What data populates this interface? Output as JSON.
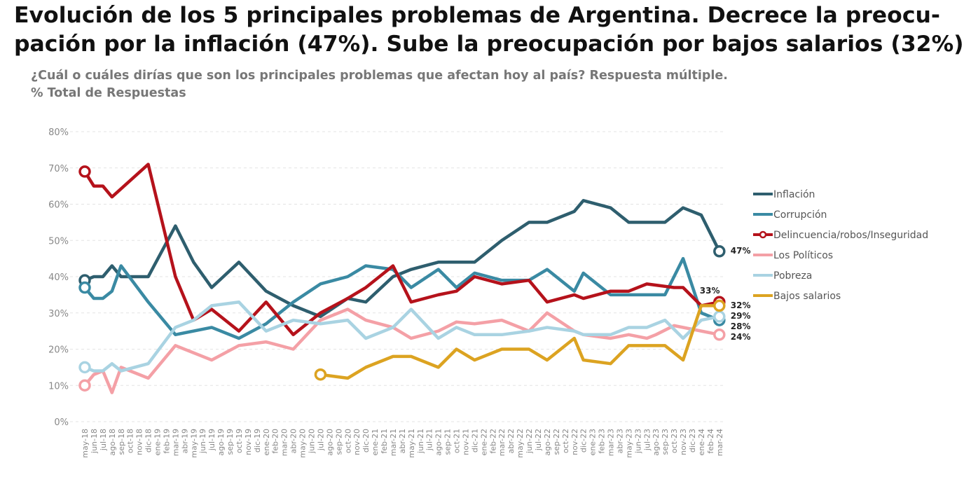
{
  "title_line1": "Evolución de los 5 principales problemas de Argentina. Decrece la preocu-",
  "title_line2": "pación por la inflación (47%). Sube la preocupación por bajos salarios (32%)",
  "subtitle_line1": "¿Cuál o cuáles dirías que son los principales problemas que afectan hoy al país? Respuesta múltiple.",
  "subtitle_line2": "% Total de Respuestas",
  "chart_data": {
    "type": "line",
    "ylim": [
      0,
      80
    ],
    "yticks": [
      "0%",
      "10%",
      "20%",
      "30%",
      "40%",
      "50%",
      "60%",
      "70%",
      "80%"
    ],
    "grid": true,
    "legend_position": "right",
    "x": [
      "may-18",
      "jun-18",
      "jul-18",
      "ago-18",
      "sep-18",
      "oct-18",
      "nov-18",
      "dic-18",
      "ene-19",
      "feb-19",
      "mar-19",
      "abr-19",
      "may-19",
      "jun-19",
      "jul-19",
      "ago-19",
      "sep-19",
      "oct-19",
      "nov-19",
      "dic-19",
      "ene-20",
      "feb-20",
      "mar-20",
      "abr-20",
      "may-20",
      "jun-20",
      "jul-20",
      "ago-20",
      "sep-20",
      "oct-20",
      "nov-20",
      "dic-20",
      "ene-21",
      "feb-21",
      "mar-21",
      "abr-21",
      "may-21",
      "jun-21",
      "jul-21",
      "ago-21",
      "sep-21",
      "oct-21",
      "nov-21",
      "dic-21",
      "ene-22",
      "feb-22",
      "mar-22",
      "abr-22",
      "may-22",
      "jun-22",
      "jul-22",
      "ago-22",
      "sep-22",
      "oct-22",
      "nov-22",
      "dic-22",
      "ene-23",
      "feb-23",
      "mar-23",
      "abr-23",
      "may-23",
      "jun-23",
      "jul-23",
      "ago-23",
      "sep-23",
      "oct-23",
      "nov-23",
      "dic-23",
      "ene-24",
      "feb-24",
      "mar-24"
    ],
    "series": [
      {
        "name": "Inflación",
        "color": "#2e5e6e",
        "end_label": "47%",
        "points": [
          [
            "may-18",
            39
          ],
          [
            "jun-18",
            40
          ],
          [
            "jul-18",
            40
          ],
          [
            "ago-18",
            43
          ],
          [
            "sep-18",
            40
          ],
          [
            "dic-18",
            40
          ],
          [
            "mar-19",
            54
          ],
          [
            "may-19",
            44
          ],
          [
            "jul-19",
            37
          ],
          [
            "oct-19",
            44
          ],
          [
            "ene-20",
            36
          ],
          [
            "abr-20",
            32
          ],
          [
            "jul-20",
            29
          ],
          [
            "oct-20",
            34
          ],
          [
            "dic-20",
            33
          ],
          [
            "mar-21",
            40
          ],
          [
            "may-21",
            42
          ],
          [
            "ago-21",
            44
          ],
          [
            "dic-21",
            44
          ],
          [
            "mar-22",
            50
          ],
          [
            "jun-22",
            55
          ],
          [
            "ago-22",
            55
          ],
          [
            "nov-22",
            58
          ],
          [
            "dic-22",
            61
          ],
          [
            "mar-23",
            59
          ],
          [
            "may-23",
            55
          ],
          [
            "sep-23",
            55
          ],
          [
            "nov-23",
            59
          ],
          [
            "ene-24",
            57
          ],
          [
            "mar-24",
            47
          ]
        ]
      },
      {
        "name": "Corrupción",
        "color": "#3a8aa3",
        "end_label": "28%",
        "points": [
          [
            "may-18",
            37
          ],
          [
            "jun-18",
            34
          ],
          [
            "jul-18",
            34
          ],
          [
            "ago-18",
            36
          ],
          [
            "sep-18",
            43
          ],
          [
            "dic-18",
            33
          ],
          [
            "mar-19",
            24
          ],
          [
            "jul-19",
            26
          ],
          [
            "oct-19",
            23
          ],
          [
            "ene-20",
            27
          ],
          [
            "abr-20",
            33
          ],
          [
            "jul-20",
            38
          ],
          [
            "oct-20",
            40
          ],
          [
            "dic-20",
            43
          ],
          [
            "mar-21",
            42
          ],
          [
            "may-21",
            37
          ],
          [
            "ago-21",
            42
          ],
          [
            "oct-21",
            37
          ],
          [
            "dic-21",
            41
          ],
          [
            "mar-22",
            39
          ],
          [
            "jun-22",
            39
          ],
          [
            "ago-22",
            42
          ],
          [
            "nov-22",
            36
          ],
          [
            "dic-22",
            41
          ],
          [
            "mar-23",
            35
          ],
          [
            "may-23",
            35
          ],
          [
            "sep-23",
            35
          ],
          [
            "nov-23",
            45
          ],
          [
            "ene-24",
            30
          ],
          [
            "mar-24",
            28
          ]
        ]
      },
      {
        "name": "Delincuencia/robos/Inseguridad",
        "color": "#b5121b",
        "end_label": "33%",
        "points": [
          [
            "may-18",
            69
          ],
          [
            "jun-18",
            65
          ],
          [
            "jul-18",
            65
          ],
          [
            "ago-18",
            62
          ],
          [
            "dic-18",
            71
          ],
          [
            "mar-19",
            40
          ],
          [
            "may-19",
            28
          ],
          [
            "jul-19",
            31
          ],
          [
            "oct-19",
            25
          ],
          [
            "ene-20",
            33
          ],
          [
            "abr-20",
            24
          ],
          [
            "jul-20",
            30
          ],
          [
            "oct-20",
            34
          ],
          [
            "dic-20",
            37
          ],
          [
            "mar-21",
            43
          ],
          [
            "may-21",
            33
          ],
          [
            "ago-21",
            35
          ],
          [
            "oct-21",
            36
          ],
          [
            "dic-21",
            40
          ],
          [
            "mar-22",
            38
          ],
          [
            "jun-22",
            39
          ],
          [
            "ago-22",
            33
          ],
          [
            "nov-22",
            35
          ],
          [
            "dic-22",
            34
          ],
          [
            "mar-23",
            36
          ],
          [
            "may-23",
            36
          ],
          [
            "jul-23",
            38
          ],
          [
            "oct-23",
            37
          ],
          [
            "nov-23",
            37
          ],
          [
            "ene-24",
            32
          ],
          [
            "mar-24",
            33
          ]
        ]
      },
      {
        "name": "Los Políticos",
        "color": "#f4a0a6",
        "end_label": "24%",
        "points": [
          [
            "may-18",
            10
          ],
          [
            "jun-18",
            13
          ],
          [
            "jul-18",
            14
          ],
          [
            "ago-18",
            8
          ],
          [
            "sep-18",
            15
          ],
          [
            "dic-18",
            12
          ],
          [
            "mar-19",
            21
          ],
          [
            "jul-19",
            17
          ],
          [
            "oct-19",
            21
          ],
          [
            "ene-20",
            22
          ],
          [
            "abr-20",
            20
          ],
          [
            "jul-20",
            28
          ],
          [
            "oct-20",
            31
          ],
          [
            "dic-20",
            28
          ],
          [
            "mar-21",
            26
          ],
          [
            "may-21",
            23
          ],
          [
            "ago-21",
            25
          ],
          [
            "oct-21",
            27.5
          ],
          [
            "dic-21",
            27
          ],
          [
            "mar-22",
            28
          ],
          [
            "jun-22",
            25
          ],
          [
            "ago-22",
            30
          ],
          [
            "nov-22",
            25
          ],
          [
            "dic-22",
            24
          ],
          [
            "mar-23",
            23
          ],
          [
            "may-23",
            24
          ],
          [
            "jul-23",
            23
          ],
          [
            "ago-23",
            24
          ],
          [
            "oct-23",
            26.5
          ],
          [
            "ene-24",
            25
          ],
          [
            "mar-24",
            24
          ]
        ]
      },
      {
        "name": "Pobreza",
        "color": "#a9d3e2",
        "end_label": "29%",
        "points": [
          [
            "may-18",
            15
          ],
          [
            "jun-18",
            14
          ],
          [
            "jul-18",
            14
          ],
          [
            "ago-18",
            16
          ],
          [
            "sep-18",
            14
          ],
          [
            "dic-18",
            16
          ],
          [
            "mar-19",
            26
          ],
          [
            "may-19",
            28
          ],
          [
            "jul-19",
            32
          ],
          [
            "oct-19",
            33
          ],
          [
            "ene-20",
            25
          ],
          [
            "abr-20",
            28
          ],
          [
            "jul-20",
            27
          ],
          [
            "oct-20",
            28
          ],
          [
            "dic-20",
            23
          ],
          [
            "mar-21",
            26
          ],
          [
            "may-21",
            31
          ],
          [
            "ago-21",
            23
          ],
          [
            "oct-21",
            26
          ],
          [
            "dic-21",
            24
          ],
          [
            "mar-22",
            24
          ],
          [
            "jun-22",
            25
          ],
          [
            "ago-22",
            26
          ],
          [
            "nov-22",
            25
          ],
          [
            "dic-22",
            24
          ],
          [
            "mar-23",
            24
          ],
          [
            "may-23",
            26
          ],
          [
            "jul-23",
            26
          ],
          [
            "sep-23",
            28
          ],
          [
            "nov-23",
            23
          ],
          [
            "ene-24",
            28
          ],
          [
            "mar-24",
            29
          ]
        ]
      },
      {
        "name": "Bajos salarios",
        "color": "#dca321",
        "end_label": "32%",
        "points": [
          [
            "jul-20",
            13
          ],
          [
            "oct-20",
            12
          ],
          [
            "dic-20",
            15
          ],
          [
            "mar-21",
            18
          ],
          [
            "may-21",
            18
          ],
          [
            "ago-21",
            15
          ],
          [
            "oct-21",
            20
          ],
          [
            "dic-21",
            17
          ],
          [
            "mar-22",
            20
          ],
          [
            "jun-22",
            20
          ],
          [
            "ago-22",
            17
          ],
          [
            "nov-22",
            23
          ],
          [
            "dic-22",
            17
          ],
          [
            "mar-23",
            16
          ],
          [
            "may-23",
            21
          ],
          [
            "sep-23",
            21
          ],
          [
            "nov-23",
            17
          ],
          [
            "ene-24",
            32
          ],
          [
            "mar-24",
            32
          ]
        ]
      }
    ]
  }
}
